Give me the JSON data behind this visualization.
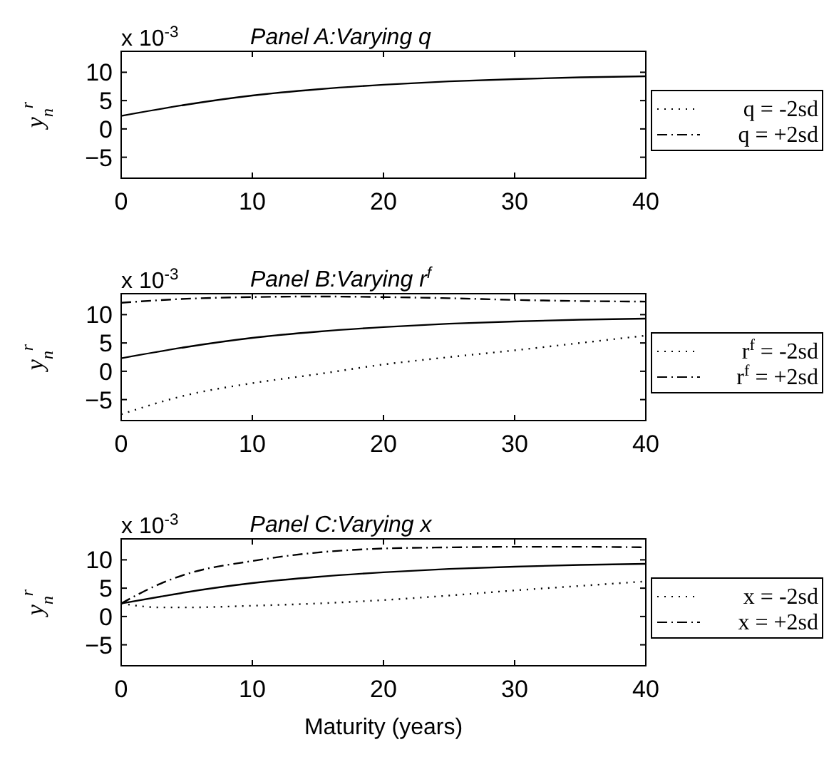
{
  "chart_data": [
    {
      "type": "line",
      "title": "Panel A:Varying q",
      "ylabel": "y$_{n}$$^{r}$",
      "annotations": [
        "x 10$^{-3}$"
      ],
      "x": [
        0,
        5,
        10,
        15,
        20,
        25,
        30,
        35,
        40
      ],
      "xlim": [
        0,
        40
      ],
      "xticks": [
        0,
        10,
        20,
        30,
        40
      ],
      "ylim": [
        -8.7,
        13.7
      ],
      "yticks": [
        -5,
        0,
        5,
        10
      ],
      "legend": "right",
      "grid": false,
      "marker": "none",
      "series": [
        {
          "color": "#000000",
          "line_style": "solid",
          "values": [
            2.3,
            4.3,
            5.9,
            7.0,
            7.8,
            8.4,
            8.8,
            9.1,
            9.3
          ]
        },
        {
          "name": "q = -2sd",
          "color": "#000000",
          "line_style": "dotted",
          "values": [
            null,
            null,
            null,
            null,
            null,
            null,
            null,
            null,
            null
          ]
        },
        {
          "name": "q = +2sd",
          "color": "#000000",
          "line_style": "dashdot",
          "values": [
            null,
            null,
            null,
            null,
            null,
            null,
            null,
            null,
            null
          ]
        }
      ]
    },
    {
      "type": "line",
      "title": "Panel B:Varying r$^{f}$",
      "ylabel": "y$_{n}$$^{r}$",
      "annotations": [
        "x 10$^{-3}$"
      ],
      "x": [
        0,
        5,
        10,
        15,
        20,
        25,
        30,
        35,
        40
      ],
      "xlim": [
        0,
        40
      ],
      "xticks": [
        0,
        10,
        20,
        30,
        40
      ],
      "ylim": [
        -8.7,
        13.7
      ],
      "yticks": [
        -5,
        0,
        5,
        10
      ],
      "legend": "right",
      "grid": false,
      "marker": "none",
      "series": [
        {
          "color": "#000000",
          "line_style": "solid",
          "values": [
            2.3,
            4.3,
            5.9,
            7.0,
            7.8,
            8.4,
            8.8,
            9.1,
            9.3
          ]
        },
        {
          "name": "r$^{f}$ = -2sd",
          "color": "#000000",
          "line_style": "dotted",
          "values": [
            -7.6,
            -4.2,
            -2.1,
            -0.5,
            1.2,
            2.5,
            3.7,
            5.0,
            6.3
          ]
        },
        {
          "name": "r$^{f}$ = +2sd",
          "color": "#000000",
          "line_style": "dashdot",
          "values": [
            12.1,
            12.8,
            13.1,
            13.2,
            13.1,
            12.9,
            12.6,
            12.4,
            12.3
          ]
        }
      ]
    },
    {
      "type": "line",
      "title": "Panel C:Varying x",
      "ylabel": "y$_{n}$$^{r}$",
      "xlabel": "Maturity (years)",
      "annotations": [
        "x 10$^{-3}$"
      ],
      "x": [
        0,
        3,
        5,
        10,
        15,
        20,
        25,
        30,
        35,
        40
      ],
      "xlim": [
        0,
        40
      ],
      "xticks": [
        0,
        10,
        20,
        30,
        40
      ],
      "ylim": [
        -8.7,
        13.7
      ],
      "yticks": [
        -5,
        0,
        5,
        10
      ],
      "legend": "right",
      "grid": false,
      "marker": "none",
      "series": [
        {
          "color": "#000000",
          "line_style": "solid",
          "values": [
            2.3,
            3.5,
            4.3,
            5.9,
            7.0,
            7.8,
            8.4,
            8.8,
            9.1,
            9.3
          ]
        },
        {
          "name": "x = -2sd",
          "color": "#000000",
          "line_style": "dotted",
          "values": [
            2.3,
            1.6,
            1.6,
            1.9,
            2.3,
            2.9,
            3.7,
            4.6,
            5.4,
            6.2
          ]
        },
        {
          "name": "x = +2sd",
          "color": "#000000",
          "line_style": "dashdot",
          "values": [
            2.3,
            5.8,
            7.5,
            9.8,
            11.3,
            12.0,
            12.2,
            12.3,
            12.3,
            12.2
          ]
        }
      ]
    }
  ]
}
